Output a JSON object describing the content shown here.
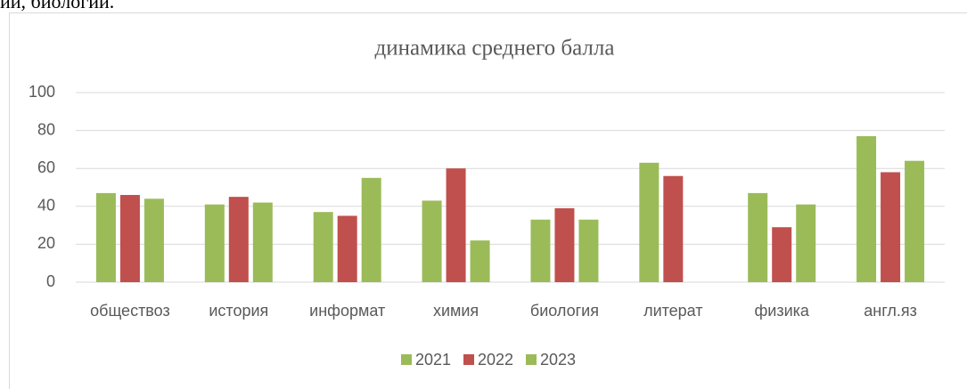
{
  "fragment": "ии, биологии.",
  "chart_data": {
    "type": "bar",
    "title": "динамика среднего балла",
    "categories": [
      "обществоз",
      "история",
      "информат",
      "химия",
      "биология",
      "литерат",
      "физика",
      "англ.яз"
    ],
    "series": [
      {
        "name": "2021",
        "color": "#9bbb59",
        "values": [
          47,
          41,
          37,
          43,
          33,
          63,
          47,
          77
        ]
      },
      {
        "name": "2022",
        "color": "#c0504d",
        "values": [
          46,
          45,
          35,
          60,
          39,
          56,
          29,
          58
        ]
      },
      {
        "name": "2023",
        "color": "#9bbb59",
        "values": [
          44,
          42,
          55,
          22,
          33,
          null,
          41,
          64
        ]
      }
    ],
    "ylim": [
      0,
      100
    ],
    "yticks": [
      0,
      20,
      40,
      60,
      80,
      100
    ],
    "grid": true,
    "legend": "bottom"
  }
}
